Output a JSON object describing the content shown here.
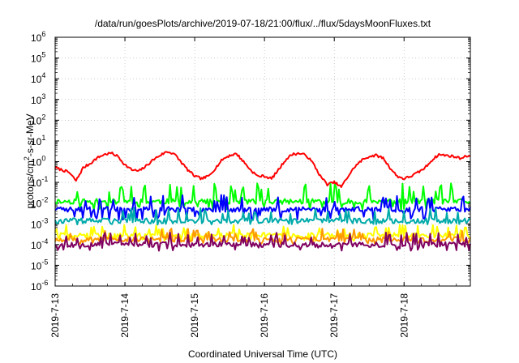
{
  "chart_data": {
    "type": "line",
    "title": "/data/run/goesPlots/archive/2019-07-18/21:00/flux/../flux/5daysMoonFluxes.txt",
    "xlabel": "Coordinated Universal Time (UTC)",
    "ylabel_base": "protons/cm",
    "ylabel_sup": "2",
    "ylabel_rest": "-s-sr-MeV",
    "y_scale": "log",
    "ylim": [
      1e-06,
      1000000.0
    ],
    "xlim_days": [
      0,
      5.95
    ],
    "grid": true,
    "legend": "none",
    "x_ticks": [
      {
        "label": "2019-7-13",
        "day": 0
      },
      {
        "label": "2019-7-14",
        "day": 1
      },
      {
        "label": "2019-7-15",
        "day": 2
      },
      {
        "label": "2019-7-16",
        "day": 3
      },
      {
        "label": "2019-7-17",
        "day": 4
      },
      {
        "label": "2019-7-18",
        "day": 5
      }
    ],
    "y_ticks": [
      {
        "base": "10",
        "exp": "-6",
        "value": 1e-06
      },
      {
        "base": "10",
        "exp": "-5",
        "value": 1e-05
      },
      {
        "base": "10",
        "exp": "-4",
        "value": 0.0001
      },
      {
        "base": "10",
        "exp": "-3",
        "value": 0.001
      },
      {
        "base": "10",
        "exp": "-2",
        "value": 0.01
      },
      {
        "base": "10",
        "exp": "-1",
        "value": 0.1
      },
      {
        "base": "10",
        "exp": "0",
        "value": 1
      },
      {
        "base": "10",
        "exp": "1",
        "value": 10
      },
      {
        "base": "10",
        "exp": "2",
        "value": 100
      },
      {
        "base": "10",
        "exp": "3",
        "value": 1000
      },
      {
        "base": "10",
        "exp": "4",
        "value": 10000
      },
      {
        "base": "10",
        "exp": "5",
        "value": 100000
      },
      {
        "base": "10",
        "exp": "6",
        "value": 1000000
      }
    ],
    "series": [
      {
        "color": "#ff0000",
        "style": "smooth",
        "x": [
          0.0,
          0.1,
          0.2,
          0.3,
          0.4,
          0.5,
          0.6,
          0.7,
          0.8,
          0.9,
          1.0,
          1.1,
          1.2,
          1.3,
          1.4,
          1.5,
          1.6,
          1.7,
          1.8,
          1.9,
          2.0,
          2.1,
          2.2,
          2.3,
          2.4,
          2.5,
          2.6,
          2.7,
          2.8,
          2.9,
          3.0,
          3.1,
          3.2,
          3.3,
          3.4,
          3.5,
          3.6,
          3.7,
          3.8,
          3.9,
          4.0,
          4.1,
          4.2,
          4.3,
          4.4,
          4.5,
          4.6,
          4.7,
          4.8,
          4.9,
          5.0,
          5.1,
          5.2,
          5.3,
          5.4,
          5.5,
          5.6,
          5.7,
          5.8,
          5.95
        ],
        "y": [
          0.5,
          0.4,
          0.3,
          0.12,
          0.5,
          0.8,
          1.5,
          2.2,
          2.6,
          1.8,
          0.7,
          0.4,
          0.35,
          0.6,
          1.2,
          2.0,
          3.0,
          2.5,
          1.0,
          0.4,
          0.2,
          0.15,
          0.2,
          0.5,
          1.3,
          2.0,
          2.4,
          1.0,
          0.4,
          0.2,
          0.2,
          0.15,
          0.4,
          1.2,
          2.3,
          2.5,
          2.0,
          0.8,
          0.2,
          0.08,
          0.1,
          0.06,
          0.2,
          0.6,
          1.2,
          1.8,
          2.0,
          1.5,
          0.5,
          0.2,
          0.15,
          0.2,
          0.3,
          0.5,
          1.2,
          2.2,
          2.0,
          1.8,
          1.5,
          2.0
        ]
      },
      {
        "color": "#00ff00",
        "style": "noisy",
        "base": 0.012,
        "spike": 0.09,
        "dip": 0.004,
        "seed": 11
      },
      {
        "color": "#0000ff",
        "style": "noisy",
        "base": 0.005,
        "spike": 0.025,
        "dip": 0.0015,
        "seed": 23
      },
      {
        "color": "#00aaaa",
        "style": "noisy",
        "base": 0.0014,
        "spike": 0.006,
        "dip": 0.0009,
        "seed": 37
      },
      {
        "color": "#ffff00",
        "style": "noisy",
        "base": 0.00028,
        "spike": 0.0009,
        "dip": 0.00015,
        "seed": 41
      },
      {
        "color": "#ff9900",
        "style": "noisy",
        "base": 0.00018,
        "spike": 0.0006,
        "dip": 0.0001,
        "seed": 53
      },
      {
        "color": "#800060",
        "style": "noisy",
        "base": 0.0001,
        "spike": 0.0004,
        "dip": 5e-05,
        "seed": 67
      }
    ]
  }
}
